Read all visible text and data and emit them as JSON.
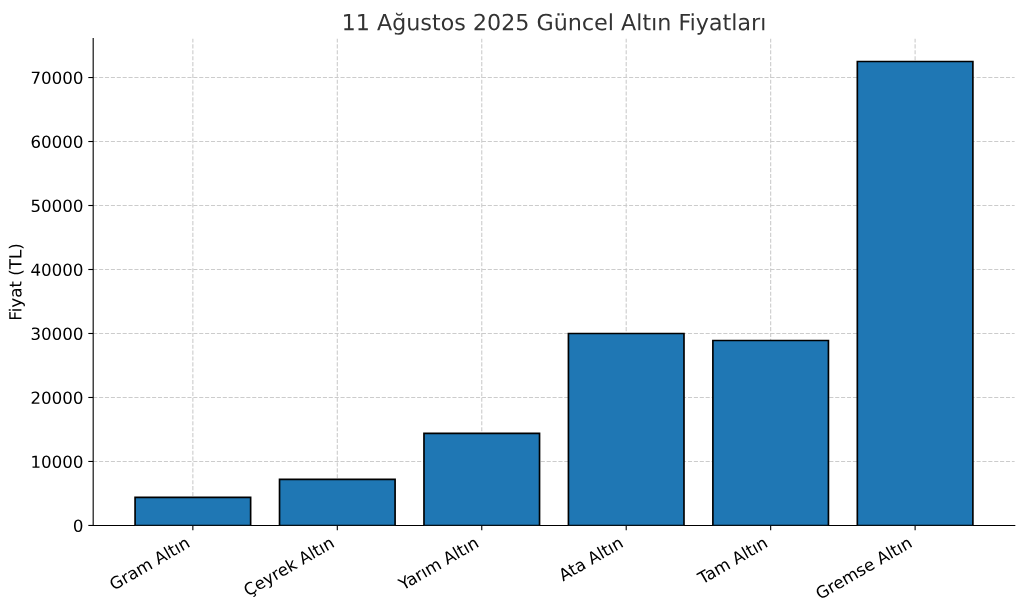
{
  "chart_data": {
    "type": "bar",
    "title": "11 Ağustos 2025 Güncel Altın Fiyatları",
    "ylabel": "Fiyat (TL)",
    "categories": [
      "Gram Altın",
      "Çeyrek Altın",
      "Yarım Altın",
      "Ata Altın",
      "Tam Altın",
      "Gremse Altın"
    ],
    "values": [
      4400,
      7200,
      14400,
      30000,
      28900,
      72500
    ],
    "color": "#1f77b4",
    "ylim": [
      0,
      76100
    ],
    "yticks": [
      0,
      10000,
      20000,
      30000,
      40000,
      50000,
      60000,
      70000
    ],
    "grid": true
  }
}
